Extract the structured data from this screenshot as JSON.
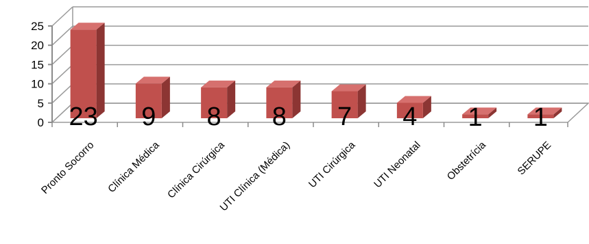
{
  "chart_data": {
    "type": "bar",
    "categories": [
      "Pronto Socorro",
      "Clínica Médica",
      "Clínica Cirúrgica",
      "UTI Clínica (Médica)",
      "UTI Cirúrgica",
      "UTI Neonatal",
      "Obstetrícia",
      "SERUPE"
    ],
    "values": [
      23,
      9,
      8,
      8,
      7,
      4,
      1,
      1
    ],
    "data_labels": [
      "23",
      "9",
      "8",
      "8",
      "7",
      "4",
      "1",
      "1"
    ],
    "yticks": [
      "0",
      "5",
      "10",
      "15",
      "20",
      "25"
    ],
    "ylim": [
      0,
      25
    ],
    "grid": true,
    "legend": "none",
    "bar_colors": {
      "front": "#c0504d",
      "side": "#8c3533",
      "top": "#d6706e"
    },
    "grid_color": "#9a9a9a"
  }
}
